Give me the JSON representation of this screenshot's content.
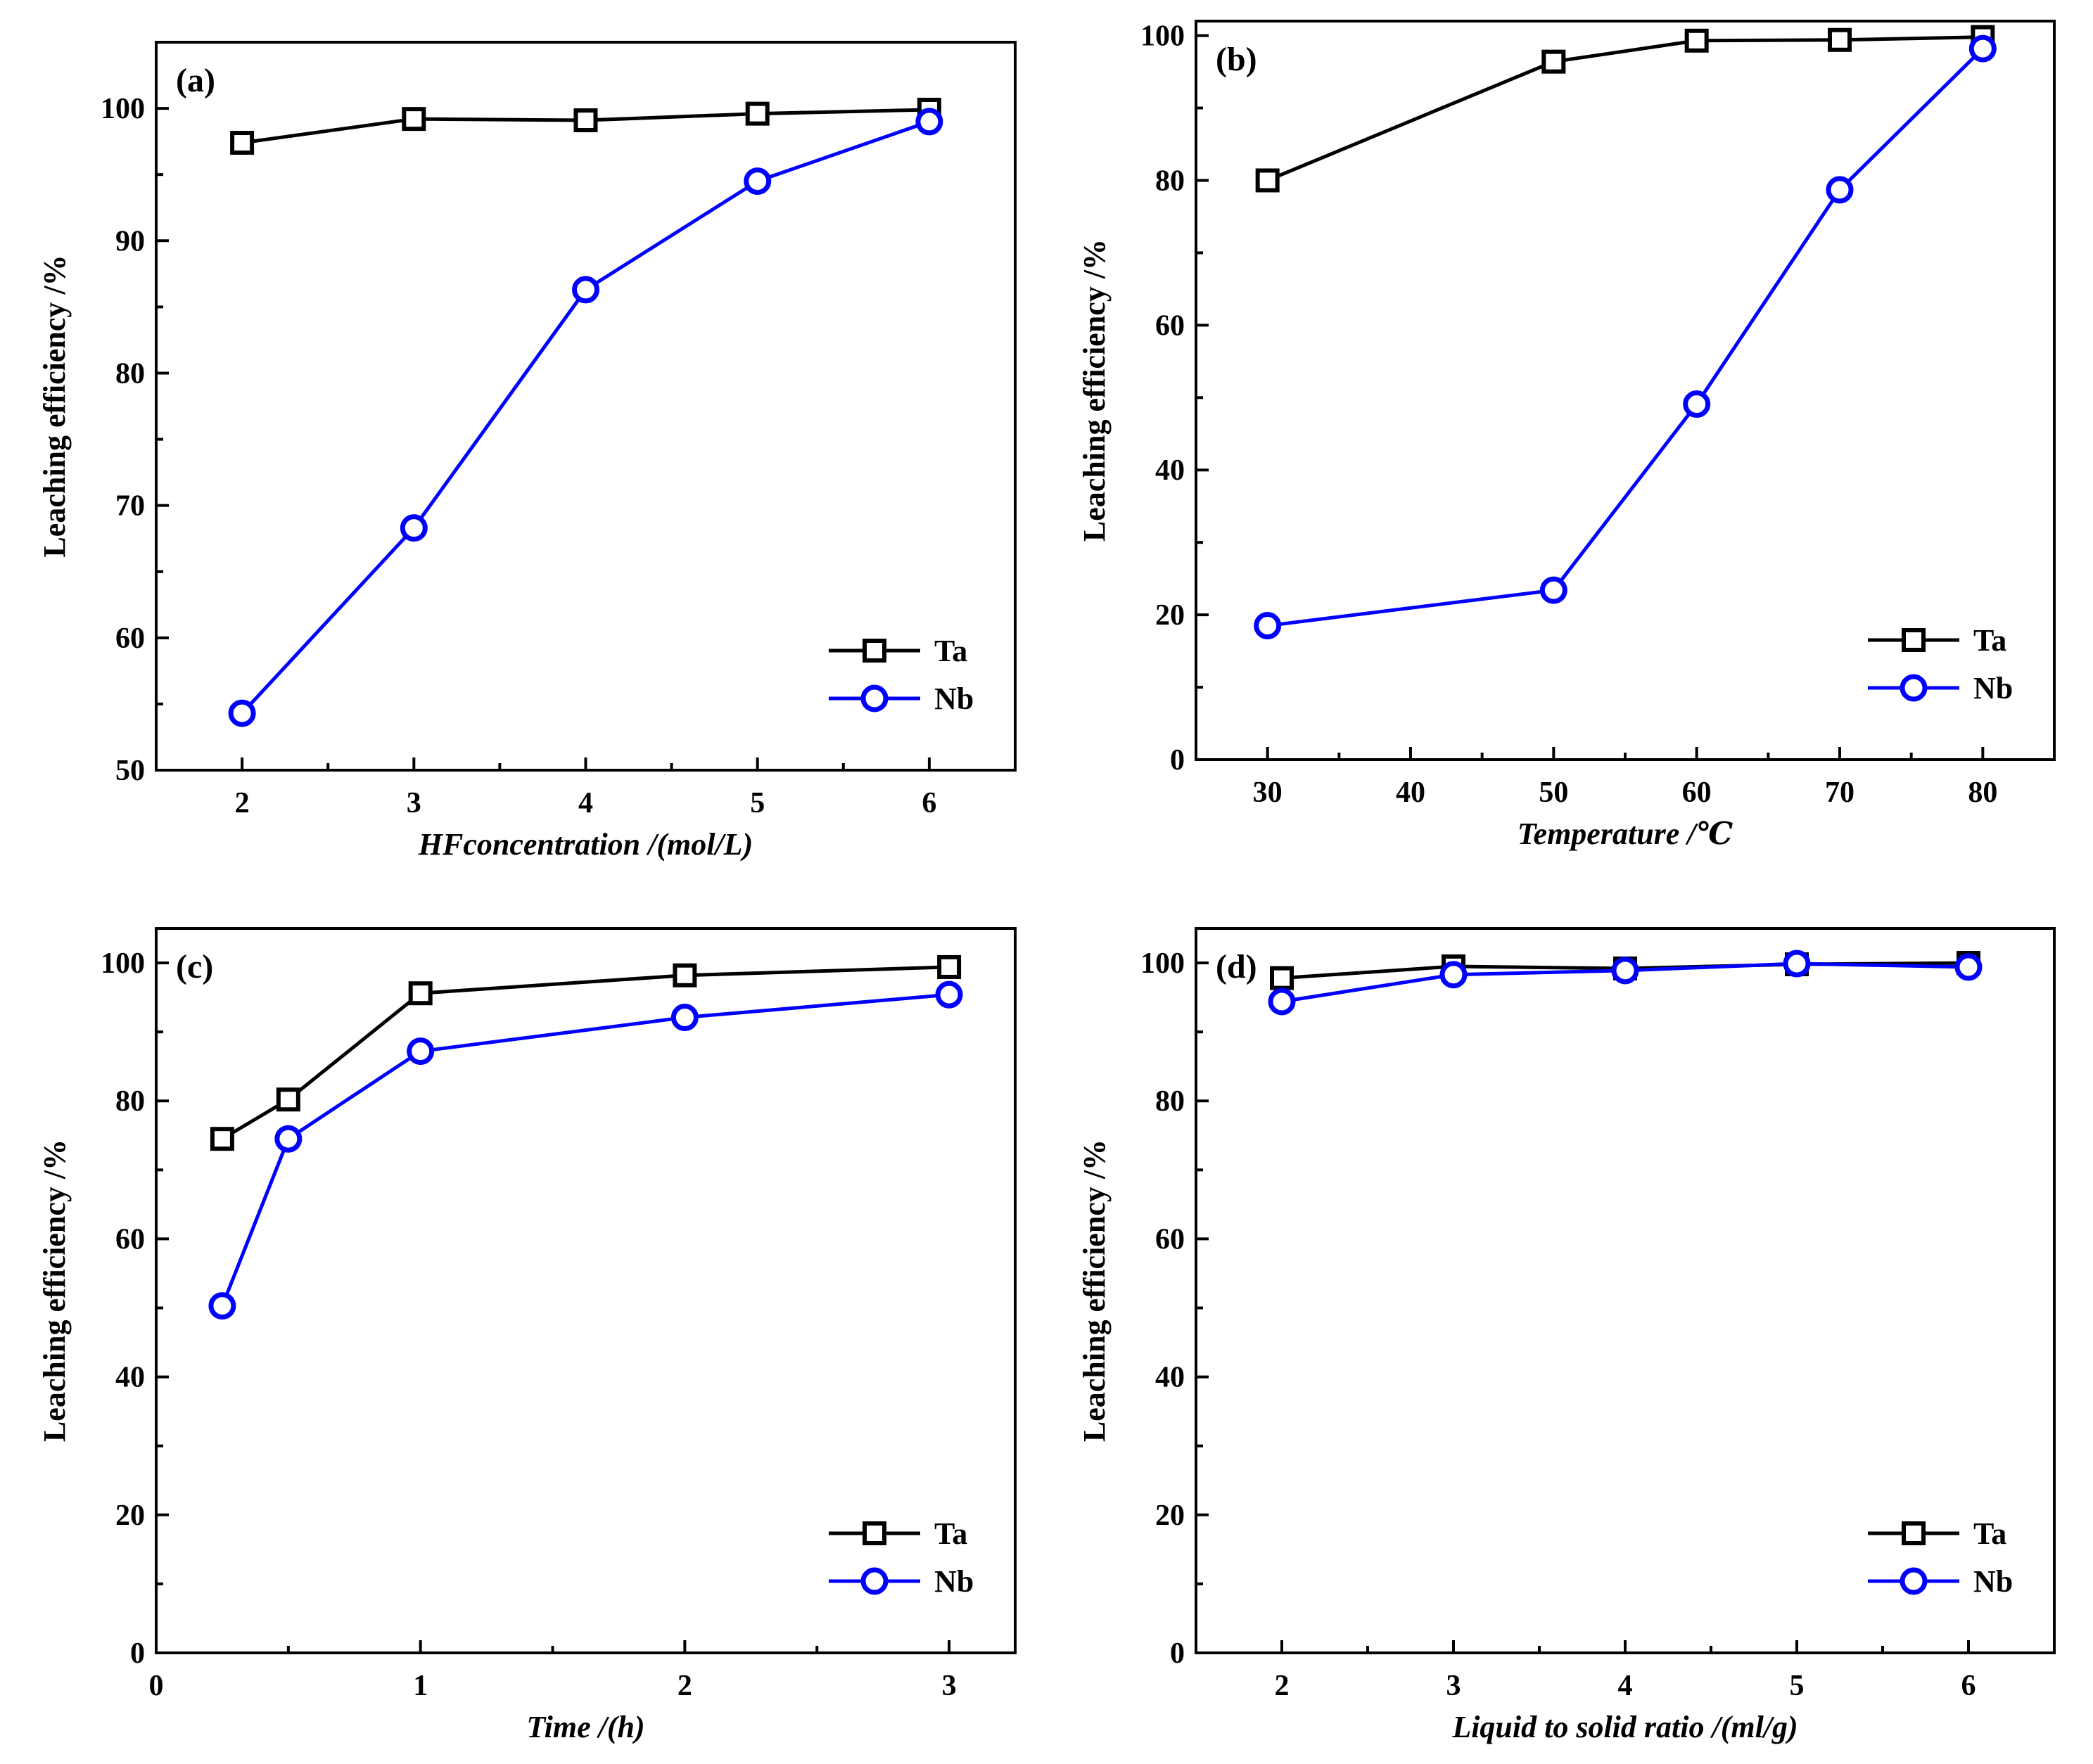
{
  "chart_data": [
    {
      "type": "line",
      "panel_label": "(a)",
      "xlabel": "HFconcentration /(mol/L)",
      "ylabel": "Leaching efficiency /%",
      "xlim": [
        1.5,
        6.5
      ],
      "ylim": [
        50,
        105
      ],
      "x_ticks": [
        2,
        3,
        4,
        5,
        6
      ],
      "x_tick_labels": [
        "2",
        "3",
        "4",
        "5",
        "6"
      ],
      "x_minor_ticks": [
        2.5,
        3.5,
        4.5,
        5.5
      ],
      "y_ticks": [
        50,
        60,
        70,
        80,
        90,
        100
      ],
      "y_tick_labels": [
        "50",
        "60",
        "70",
        "80",
        "90",
        "100"
      ],
      "y_minor_ticks": [
        55,
        65,
        75,
        85,
        95,
        105
      ],
      "legend": "bottom-right",
      "series": [
        {
          "name": "Ta",
          "color": "#000000",
          "marker": "square",
          "x": [
            2,
            3,
            4,
            5,
            6
          ],
          "values": [
            97.4,
            99.2,
            99.1,
            99.6,
            99.9
          ]
        },
        {
          "name": "Nb",
          "color": "#0000ff",
          "marker": "circle",
          "x": [
            2,
            3,
            4,
            5,
            6
          ],
          "values": [
            54.3,
            68.3,
            86.3,
            94.5,
            99.0
          ]
        }
      ]
    },
    {
      "type": "line",
      "panel_label": "(b)",
      "xlabel": "Temperature /℃",
      "ylabel": "Leaching efficiency /%",
      "xlim": [
        25,
        85
      ],
      "ylim": [
        0,
        102
      ],
      "x_ticks": [
        30,
        40,
        50,
        60,
        70,
        80
      ],
      "x_tick_labels": [
        "30",
        "40",
        "50",
        "60",
        "70",
        "80"
      ],
      "x_minor_ticks": [
        35,
        45,
        55,
        65,
        75
      ],
      "y_ticks": [
        0,
        20,
        40,
        60,
        80,
        100
      ],
      "y_tick_labels": [
        "0",
        "20",
        "40",
        "60",
        "80",
        "100"
      ],
      "y_minor_ticks": [
        10,
        30,
        50,
        70,
        90
      ],
      "legend": "bottom-right",
      "series": [
        {
          "name": "Ta",
          "color": "#000000",
          "marker": "square",
          "x": [
            30,
            50,
            60,
            70,
            80
          ],
          "values": [
            80.0,
            96.4,
            99.3,
            99.4,
            99.8
          ]
        },
        {
          "name": "Nb",
          "color": "#0000ff",
          "marker": "circle",
          "x": [
            30,
            50,
            60,
            70,
            80
          ],
          "values": [
            18.5,
            23.4,
            49.1,
            78.7,
            98.2
          ]
        }
      ]
    },
    {
      "type": "line",
      "panel_label": "(c)",
      "xlabel": "Time /(h)",
      "ylabel": "Leaching efficiency /%",
      "xlim": [
        0,
        3.25
      ],
      "ylim": [
        0,
        105
      ],
      "x_ticks": [
        0,
        1,
        2,
        3
      ],
      "x_tick_labels": [
        "0",
        "1",
        "2",
        "3"
      ],
      "x_minor_ticks": [
        0.5,
        1.5,
        2.5
      ],
      "y_ticks": [
        0,
        20,
        40,
        60,
        80,
        100
      ],
      "y_tick_labels": [
        "0",
        "20",
        "40",
        "60",
        "80",
        "100"
      ],
      "y_minor_ticks": [
        10,
        30,
        50,
        70,
        90
      ],
      "legend": "bottom-right",
      "series": [
        {
          "name": "Ta",
          "color": "#000000",
          "marker": "square",
          "x": [
            0.25,
            0.5,
            1,
            2,
            3
          ],
          "values": [
            74.5,
            80.2,
            95.6,
            98.2,
            99.4
          ]
        },
        {
          "name": "Nb",
          "color": "#0000ff",
          "marker": "circle",
          "x": [
            0.25,
            0.5,
            1,
            2,
            3
          ],
          "values": [
            50.3,
            74.5,
            87.2,
            92.1,
            95.4
          ]
        }
      ]
    },
    {
      "type": "line",
      "panel_label": "(d)",
      "xlabel": "Liquid to solid ratio /(ml/g)",
      "ylabel": "Leaching efficiency /%",
      "xlim": [
        1.5,
        6.5
      ],
      "ylim": [
        0,
        105
      ],
      "x_ticks": [
        2,
        3,
        4,
        5,
        6
      ],
      "x_tick_labels": [
        "2",
        "3",
        "4",
        "5",
        "6"
      ],
      "x_minor_ticks": [
        2.5,
        3.5,
        4.5,
        5.5
      ],
      "y_ticks": [
        0,
        20,
        40,
        60,
        80,
        100
      ],
      "y_tick_labels": [
        "0",
        "20",
        "40",
        "60",
        "80",
        "100"
      ],
      "y_minor_ticks": [
        10,
        30,
        50,
        70,
        90
      ],
      "legend": "bottom-right",
      "series": [
        {
          "name": "Ta",
          "color": "#000000",
          "marker": "square",
          "x": [
            2,
            3,
            4,
            5,
            6
          ],
          "values": [
            97.8,
            99.5,
            99.2,
            99.8,
            100.0
          ]
        },
        {
          "name": "Nb",
          "color": "#0000ff",
          "marker": "circle",
          "x": [
            2,
            3,
            4,
            5,
            6
          ],
          "values": [
            94.4,
            98.3,
            98.9,
            99.9,
            99.4
          ]
        }
      ]
    }
  ]
}
